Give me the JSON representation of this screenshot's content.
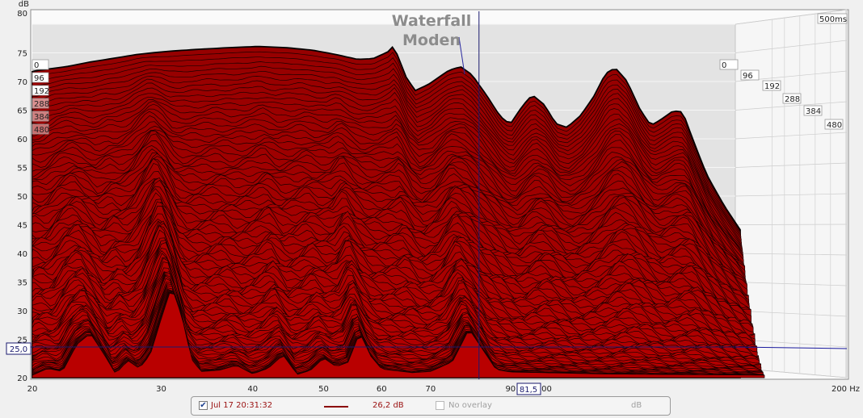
{
  "chart_data": {
    "type": "waterfall",
    "title": "Waterfall",
    "subtitle": "Moden",
    "xlabel": "",
    "ylabel": "dB",
    "x_unit": "Hz",
    "x_scale": "log",
    "xlim": [
      20,
      200
    ],
    "ylim": [
      20,
      80
    ],
    "x_ticks": [
      20,
      30,
      40,
      50,
      60,
      70,
      90,
      100
    ],
    "x_tick_labels": [
      "20",
      "30",
      "40",
      "50",
      "60",
      "70",
      "90",
      "100"
    ],
    "x_end_label": "200 Hz",
    "y_ticks": [
      20,
      25,
      30,
      35,
      40,
      45,
      50,
      55,
      60,
      65,
      70,
      75,
      80
    ],
    "y_tick_labels": [
      "20",
      "25",
      "30",
      "35",
      "40",
      "45",
      "50",
      "55",
      "60",
      "65",
      "70",
      "75",
      "80"
    ],
    "time_ms_labels": [
      "0",
      "96",
      "192",
      "288",
      "384",
      "480"
    ],
    "time_span_label": "500ms",
    "cursor": {
      "x_label": "81,5",
      "y_label": "25,0",
      "x": 81.5,
      "y": 25.0
    },
    "fill_color": "#b80000",
    "line_color": "#1a0000",
    "grid": true,
    "first_slice": [
      [
        20,
        66.2
      ],
      [
        21,
        67.6
      ],
      [
        22,
        68.0
      ],
      [
        24,
        68.6
      ],
      [
        26,
        69.4
      ],
      [
        28,
        70.0
      ],
      [
        30,
        70.6
      ],
      [
        33,
        71.1
      ],
      [
        36,
        71.4
      ],
      [
        40,
        71.7
      ],
      [
        44,
        71.9
      ],
      [
        48,
        71.7
      ],
      [
        52,
        71.3
      ],
      [
        56,
        70.6
      ],
      [
        60,
        69.8
      ],
      [
        63,
        69.9
      ],
      [
        66,
        71.0
      ],
      [
        67,
        71.8
      ],
      [
        68,
        70.6
      ],
      [
        70,
        66.8
      ],
      [
        72,
        64.7
      ],
      [
        75,
        65.7
      ],
      [
        80,
        68.0
      ],
      [
        83,
        68.6
      ],
      [
        86,
        67.3
      ],
      [
        90,
        64.0
      ],
      [
        94,
        60.5
      ],
      [
        97,
        59.2
      ],
      [
        101,
        62.3
      ],
      [
        104,
        64.0
      ],
      [
        108,
        62.4
      ],
      [
        112,
        59.3
      ],
      [
        116,
        58.7
      ],
      [
        121,
        60.6
      ],
      [
        126,
        63.6
      ],
      [
        131,
        67.5
      ],
      [
        135,
        68.4
      ],
      [
        140,
        66.3
      ],
      [
        146,
        61.6
      ],
      [
        151,
        59.0
      ],
      [
        156,
        60.0
      ],
      [
        162,
        61.4
      ],
      [
        167,
        61.2
      ],
      [
        172,
        57.0
      ],
      [
        180,
        51.0
      ],
      [
        190,
        46.0
      ],
      [
        200,
        42.0
      ]
    ],
    "final_slice": [
      [
        20,
        20.4
      ],
      [
        21,
        21.5
      ],
      [
        22,
        21.0
      ],
      [
        23,
        25.4
      ],
      [
        24,
        27.2
      ],
      [
        25,
        24.0
      ],
      [
        26,
        20.6
      ],
      [
        27,
        22.8
      ],
      [
        28,
        21.5
      ],
      [
        29,
        23.8
      ],
      [
        30,
        29.6
      ],
      [
        31,
        34.8
      ],
      [
        32,
        30.0
      ],
      [
        33,
        23.0
      ],
      [
        34,
        21.0
      ],
      [
        36,
        21.2
      ],
      [
        38,
        22.0
      ],
      [
        40,
        20.6
      ],
      [
        42,
        21.5
      ],
      [
        44,
        23.7
      ],
      [
        46,
        20.5
      ],
      [
        48,
        21.2
      ],
      [
        50,
        23.2
      ],
      [
        52,
        21.8
      ],
      [
        54,
        22.5
      ],
      [
        56,
        27.3
      ],
      [
        58,
        23.5
      ],
      [
        60,
        21.4
      ],
      [
        63,
        21.1
      ],
      [
        66,
        20.8
      ],
      [
        70,
        21.0
      ],
      [
        75,
        22.6
      ],
      [
        79,
        27.9
      ],
      [
        82,
        25.0
      ],
      [
        86,
        21.3
      ],
      [
        90,
        20.9
      ],
      [
        100,
        20.8
      ],
      [
        120,
        20.6
      ],
      [
        150,
        20.5
      ],
      [
        200,
        20.4
      ]
    ],
    "slice_count": 96
  },
  "legend": {
    "checked": true,
    "measurement_label": "Jul 17 20:31:32",
    "level_label": "26,2 dB",
    "overlay_label": "No overlay",
    "unit_label": "dB",
    "line_color": "#8b0000"
  }
}
